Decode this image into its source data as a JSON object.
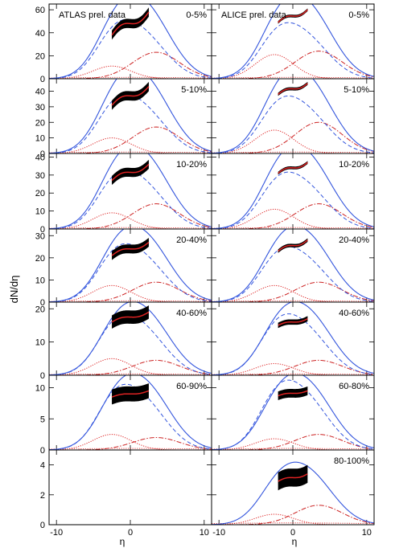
{
  "figure": {
    "ylabel": "dN/dη",
    "xlabel": "η"
  },
  "colors": {
    "total": "#3355dd",
    "forward": "#3355dd",
    "data_band": "#000000",
    "data_line": "#dd2222",
    "backward_dotted": "#dd2222",
    "forward_dashdot": "#cc2222"
  },
  "chart_data": {
    "type": "line",
    "xlim": [
      -11,
      11
    ],
    "x_ticks": [
      -10,
      0,
      10
    ],
    "x_tick_labels": [
      "-10",
      "0",
      "10"
    ],
    "x_labels": [
      "η",
      "η"
    ],
    "columns": [
      "ATLAS prel. data",
      "ALICE prel. data"
    ],
    "curves": {
      "solid_blue": "total dN/dη",
      "dashed_blue": "second component",
      "dotted_red": "backward component",
      "dashdot_red": "forward component"
    },
    "rows": [
      {
        "ylim": [
          0,
          65
        ],
        "yticks": [
          0,
          20,
          40,
          60
        ],
        "panels": [
          {
            "label": "0-5%",
            "legend": "ATLAS prel. data",
            "has_model": true,
            "total_peak": 60,
            "dashed_peak": 39,
            "dotted_peak": 11,
            "dashdot_peak": 23,
            "data_range": [
              -2.5,
              2.5
            ],
            "data_lo": 38,
            "data_hi": 58,
            "band": 4
          },
          {
            "label": "0-5%",
            "legend": "ALICE prel. data",
            "has_model": true,
            "total_peak": 60,
            "dashed_peak": 37,
            "dotted_peak": 21,
            "dashdot_peak": 24,
            "data_range": [
              -2.0,
              2.0
            ],
            "data_lo": 49,
            "data_hi": 60,
            "band": 1.2
          }
        ]
      },
      {
        "ylim": [
          0,
          48
        ],
        "yticks": [
          0,
          10,
          20,
          30,
          40
        ],
        "panels": [
          {
            "label": "5-10%",
            "legend": "",
            "has_model": true,
            "total_peak": 45,
            "dashed_peak": 29,
            "dotted_peak": 10,
            "dashdot_peak": 17,
            "data_range": [
              -2.5,
              2.5
            ],
            "data_lo": 31,
            "data_hi": 43,
            "band": 3
          },
          {
            "label": "5-10%",
            "legend": "",
            "has_model": true,
            "total_peak": 45,
            "dashed_peak": 28,
            "dotted_peak": 15,
            "dashdot_peak": 20,
            "data_range": [
              -2.0,
              2.0
            ],
            "data_lo": 38,
            "data_hi": 45,
            "band": 1
          }
        ]
      },
      {
        "ylim": [
          0,
          42
        ],
        "yticks": [
          0,
          10,
          20,
          30,
          40
        ],
        "panels": [
          {
            "label": "10-20%",
            "legend": "",
            "has_model": true,
            "total_peak": 38,
            "dashed_peak": 25,
            "dotted_peak": 9,
            "dashdot_peak": 14,
            "data_range": [
              -2.5,
              2.5
            ],
            "data_lo": 27,
            "data_hi": 36,
            "band": 2.5
          },
          {
            "label": "10-20%",
            "legend": "",
            "has_model": true,
            "total_peak": 38,
            "dashed_peak": 24,
            "dotted_peak": 11,
            "dashdot_peak": 14,
            "data_range": [
              -2.0,
              2.0
            ],
            "data_lo": 31,
            "data_hi": 37,
            "band": 0.8
          }
        ]
      },
      {
        "ylim": [
          0,
          33
        ],
        "yticks": [
          0,
          10,
          20,
          30
        ],
        "panels": [
          {
            "label": "20-40%",
            "legend": "",
            "has_model": true,
            "total_peak": 28,
            "dashed_peak": 20,
            "dotted_peak": 7.5,
            "dashdot_peak": 9,
            "data_range": [
              -2.5,
              2.5
            ],
            "data_lo": 21,
            "data_hi": 27,
            "band": 2
          },
          {
            "label": "20-40%",
            "legend": "",
            "has_model": true,
            "total_peak": 28,
            "dashed_peak": 19,
            "dotted_peak": 7.5,
            "dashdot_peak": 9,
            "data_range": [
              -2.0,
              2.0
            ],
            "data_lo": 23,
            "data_hi": 28,
            "band": 0.8
          }
        ]
      },
      {
        "ylim": [
          0,
          22
        ],
        "yticks": [
          0,
          10,
          20
        ],
        "panels": [
          {
            "label": "40-60%",
            "legend": "",
            "has_model": true,
            "total_peak": 18,
            "dashed_peak": 14,
            "dotted_peak": 5,
            "dashdot_peak": 4.5,
            "data_range": [
              -2.5,
              2.5
            ],
            "data_lo": 16,
            "data_hi": 19,
            "band": 2
          },
          {
            "label": "40-60%",
            "legend": "",
            "has_model": true,
            "total_peak": 18,
            "dashed_peak": 14,
            "dotted_peak": 3.5,
            "dashdot_peak": 4.5,
            "data_range": [
              -2.0,
              2.0
            ],
            "data_lo": 15,
            "data_hi": 17,
            "band": 0.8
          }
        ]
      },
      {
        "ylim": [
          0,
          12
        ],
        "yticks": [
          0,
          5,
          10
        ],
        "panels": [
          {
            "label": "60-90%",
            "legend": "",
            "has_model": true,
            "total_peak": 10,
            "dashed_peak": 8,
            "dotted_peak": 2.5,
            "dashdot_peak": 2,
            "data_range": [
              -2.5,
              2.5
            ],
            "data_lo": 8.5,
            "data_hi": 9.5,
            "band": 1.2
          },
          {
            "label": "60-80%",
            "legend": "",
            "has_model": true,
            "total_peak": 10,
            "dashed_peak": 8.5,
            "dotted_peak": 1.8,
            "dashdot_peak": 2.5,
            "data_range": [
              -2.0,
              2.0
            ],
            "data_lo": 8.7,
            "data_hi": 9.5,
            "band": 0.7
          }
        ]
      },
      {
        "ylim": [
          0,
          5
        ],
        "yticks": [
          0,
          2,
          4
        ],
        "panels": [
          {
            "label": "",
            "legend": "",
            "has_model": false
          },
          {
            "label": "80-100%",
            "legend": "",
            "has_model": true,
            "total_peak": 3.4,
            "dashed_peak": 0,
            "dotted_peak": 0.7,
            "dashdot_peak": 1.3,
            "data_range": [
              -2.0,
              2.0
            ],
            "data_lo": 2.9,
            "data_hi": 3.4,
            "band": 0.6
          }
        ]
      }
    ]
  }
}
